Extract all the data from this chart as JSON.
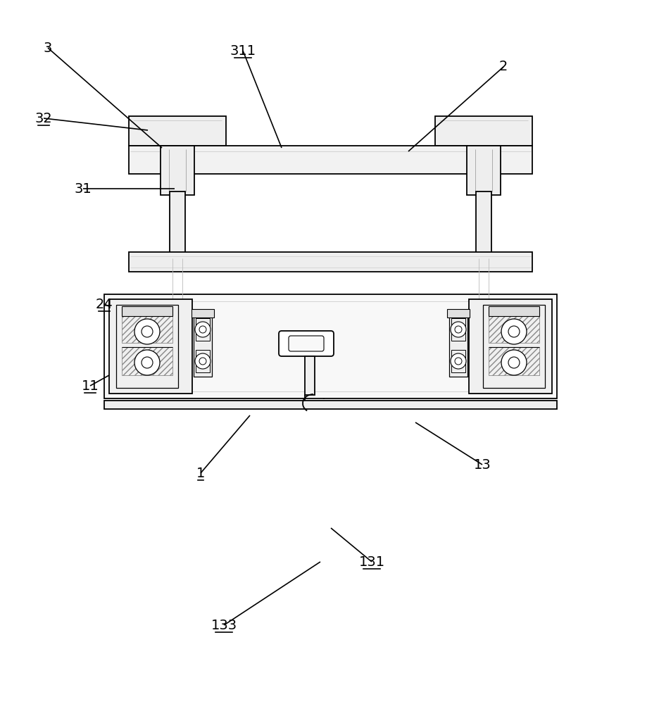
{
  "bg_color": "#ffffff",
  "line_color": "#000000",
  "figsize": [
    9.36,
    10.0
  ],
  "dpi": 100,
  "underlined_labels": [
    "32",
    "311",
    "24",
    "11",
    "1",
    "133",
    "131"
  ]
}
